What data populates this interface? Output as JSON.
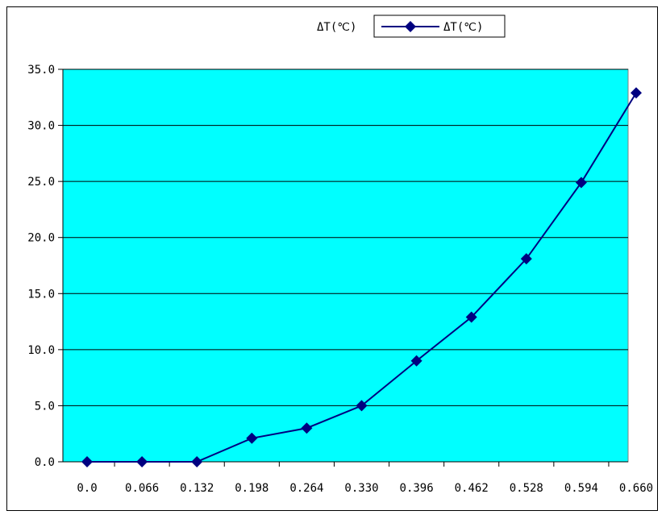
{
  "chart_data": {
    "type": "line",
    "title": "ΔT(℃)",
    "xlabel": "",
    "ylabel": "",
    "categories": [
      "0.0",
      "0.066",
      "0.132",
      "0.198",
      "0.264",
      "0.330",
      "0.396",
      "0.462",
      "0.528",
      "0.594",
      "0.660"
    ],
    "series": [
      {
        "name": "ΔT(℃)",
        "values": [
          0.0,
          0.0,
          0.0,
          2.1,
          3.0,
          5.0,
          9.0,
          12.9,
          18.1,
          24.9,
          32.9
        ]
      }
    ],
    "ylim": [
      0,
      35
    ],
    "yticks": [
      "0.0",
      "5.0",
      "10.0",
      "15.0",
      "20.0",
      "25.0",
      "30.0",
      "35.0"
    ],
    "grid": true,
    "legend": "top-right",
    "colors": {
      "plot_bg": "#00ffff",
      "line": "#000080",
      "marker": "#000080",
      "grid": "#000000"
    }
  }
}
